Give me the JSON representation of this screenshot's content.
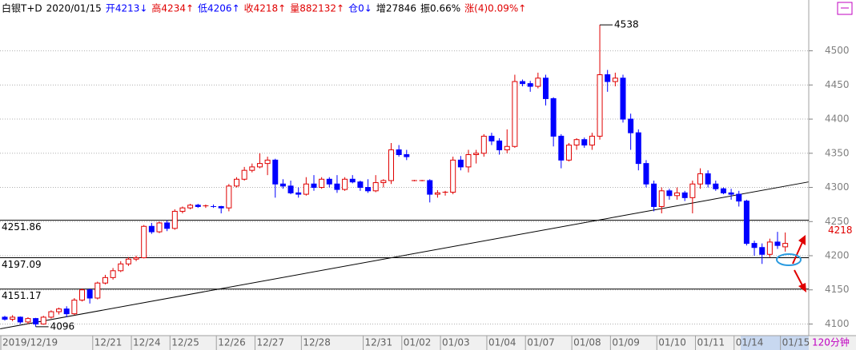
{
  "chart_data": {
    "type": "candlestick",
    "title_parts": [
      {
        "text": "白银T+D",
        "color": "#000000"
      },
      {
        "text": "2020/01/15",
        "color": "#000000"
      },
      {
        "text": "开4213↓",
        "color": "#0000ff"
      },
      {
        "text": "高4234↑",
        "color": "#e00000"
      },
      {
        "text": "低4206↑",
        "color": "#0000ff"
      },
      {
        "text": "收4218↑",
        "color": "#e00000"
      },
      {
        "text": "量882132↑",
        "color": "#e00000"
      },
      {
        "text": "仓0↓",
        "color": "#0000ff"
      },
      {
        "text": "增27846",
        "color": "#000000"
      },
      {
        "text": "振0.66%",
        "color": "#000000"
      },
      {
        "text": "涨(4)0.09%↑",
        "color": "#e00000"
      }
    ],
    "timeframe": "120分钟",
    "up_color": "#e00000",
    "down_color": "#0000ff",
    "ylim": [
      4083,
      4551
    ],
    "yticks": [
      4100,
      4150,
      4200,
      4250,
      4300,
      4350,
      4400,
      4450,
      4500
    ],
    "grid": true,
    "ref_lines": [
      4251.86,
      4197.09,
      4151.17
    ],
    "trend_line": {
      "from": [
        -0.6,
        4093
      ],
      "to": [
        104,
        4308
      ]
    },
    "high_label_index": 77,
    "low_label_index": 4,
    "categories": [
      "2019/12/19",
      null,
      null,
      null,
      null,
      null,
      null,
      null,
      null,
      null,
      null,
      null,
      "12/21",
      null,
      null,
      null,
      null,
      "12/24",
      null,
      null,
      null,
      null,
      "12/25",
      null,
      null,
      null,
      null,
      null,
      "12/26",
      null,
      null,
      null,
      null,
      "12/27",
      null,
      null,
      null,
      null,
      null,
      "12/28",
      null,
      null,
      null,
      null,
      null,
      null,
      null,
      "12/31",
      null,
      null,
      null,
      null,
      "01/02",
      null,
      null,
      null,
      null,
      "01/03",
      null,
      null,
      null,
      null,
      null,
      "01/04",
      null,
      null,
      null,
      null,
      "01/07",
      null,
      null,
      null,
      null,
      null,
      "01/08",
      null,
      null,
      null,
      null,
      "01/09",
      null,
      null,
      null,
      null,
      null,
      "01/10",
      null,
      null,
      null,
      null,
      "01/11",
      null,
      null,
      null,
      null,
      "01/14",
      null,
      null,
      null,
      null,
      null,
      "01/15"
    ],
    "candles": [
      [
        4110,
        4112,
        4105,
        4107
      ],
      [
        4107,
        4113,
        4104,
        4110
      ],
      [
        4110,
        4111,
        4100,
        4103
      ],
      [
        4103,
        4110,
        4100,
        4108
      ],
      [
        4108,
        4109,
        4096,
        4100
      ],
      [
        4100,
        4112,
        4099,
        4110
      ],
      [
        4110,
        4120,
        4108,
        4118
      ],
      [
        4118,
        4124,
        4114,
        4122
      ],
      [
        4122,
        4126,
        4110,
        4115
      ],
      [
        4115,
        4138,
        4113,
        4135
      ],
      [
        4135,
        4152,
        4133,
        4150
      ],
      [
        4150,
        4152,
        4130,
        4138
      ],
      [
        4138,
        4162,
        4136,
        4160
      ],
      [
        4160,
        4172,
        4158,
        4168
      ],
      [
        4168,
        4182,
        4165,
        4178
      ],
      [
        4178,
        4192,
        4176,
        4188
      ],
      [
        4188,
        4198,
        4185,
        4195
      ],
      [
        4195,
        4200,
        4192,
        4197
      ],
      [
        4197,
        4245,
        4196,
        4243
      ],
      [
        4243,
        4248,
        4232,
        4235
      ],
      [
        4235,
        4250,
        4233,
        4248
      ],
      [
        4248,
        4252,
        4236,
        4240
      ],
      [
        4240,
        4268,
        4238,
        4265
      ],
      [
        4265,
        4272,
        4262,
        4270
      ],
      [
        4270,
        4276,
        4268,
        4274
      ],
      [
        4274,
        4276,
        4270,
        4272
      ],
      [
        4272,
        4275,
        4270,
        4273
      ],
      [
        4273,
        4275,
        4270,
        4272
      ],
      [
        4272,
        4273,
        4262,
        4270
      ],
      [
        4270,
        4305,
        4265,
        4302
      ],
      [
        4302,
        4315,
        4300,
        4312
      ],
      [
        4312,
        4330,
        4310,
        4325
      ],
      [
        4325,
        4335,
        4322,
        4330
      ],
      [
        4330,
        4350,
        4328,
        4335
      ],
      [
        4335,
        4345,
        4318,
        4340
      ],
      [
        4340,
        4342,
        4285,
        4305
      ],
      [
        4305,
        4312,
        4298,
        4302
      ],
      [
        4302,
        4310,
        4290,
        4292
      ],
      [
        4292,
        4300,
        4285,
        4290
      ],
      [
        4290,
        4315,
        4288,
        4305
      ],
      [
        4305,
        4318,
        4295,
        4300
      ],
      [
        4300,
        4315,
        4298,
        4312
      ],
      [
        4312,
        4315,
        4300,
        4305
      ],
      [
        4305,
        4318,
        4292,
        4297
      ],
      [
        4297,
        4315,
        4295,
        4312
      ],
      [
        4312,
        4318,
        4306,
        4308
      ],
      [
        4308,
        4310,
        4295,
        4300
      ],
      [
        4300,
        4312,
        4292,
        4295
      ],
      [
        4295,
        4318,
        4293,
        4307
      ],
      [
        4307,
        4312,
        4300,
        4310
      ],
      [
        4310,
        4365,
        4305,
        4355
      ],
      [
        4355,
        4362,
        4345,
        4348
      ],
      [
        4348,
        4355,
        4340,
        4345
      ],
      [
        4310,
        4311,
        4309,
        4310
      ],
      [
        4310,
        4311,
        4309,
        4310
      ],
      [
        4310,
        4312,
        4278,
        4290
      ],
      [
        4290,
        4296,
        4285,
        4292
      ],
      [
        4292,
        4295,
        4288,
        4293
      ],
      [
        4293,
        4345,
        4290,
        4340
      ],
      [
        4340,
        4346,
        4325,
        4330
      ],
      [
        4330,
        4355,
        4322,
        4348
      ],
      [
        4348,
        4355,
        4335,
        4350
      ],
      [
        4350,
        4378,
        4345,
        4375
      ],
      [
        4375,
        4380,
        4362,
        4368
      ],
      [
        4368,
        4372,
        4348,
        4355
      ],
      [
        4355,
        4385,
        4350,
        4360
      ],
      [
        4360,
        4465,
        4358,
        4455
      ],
      [
        4455,
        4458,
        4448,
        4452
      ],
      [
        4452,
        4456,
        4440,
        4448
      ],
      [
        4448,
        4468,
        4445,
        4460
      ],
      [
        4460,
        4465,
        4420,
        4430
      ],
      [
        4430,
        4432,
        4360,
        4375
      ],
      [
        4375,
        4378,
        4328,
        4340
      ],
      [
        4340,
        4365,
        4338,
        4362
      ],
      [
        4362,
        4372,
        4355,
        4370
      ],
      [
        4370,
        4373,
        4358,
        4362
      ],
      [
        4362,
        4380,
        4355,
        4375
      ],
      [
        4375,
        4538,
        4370,
        4465
      ],
      [
        4465,
        4472,
        4440,
        4455
      ],
      [
        4455,
        4468,
        4448,
        4460
      ],
      [
        4460,
        4465,
        4395,
        4400
      ],
      [
        4400,
        4408,
        4355,
        4380
      ],
      [
        4380,
        4385,
        4325,
        4335
      ],
      [
        4335,
        4340,
        4300,
        4305
      ],
      [
        4305,
        4310,
        4265,
        4272
      ],
      [
        4272,
        4300,
        4262,
        4295
      ],
      [
        4295,
        4298,
        4282,
        4288
      ],
      [
        4288,
        4300,
        4282,
        4292
      ],
      [
        4292,
        4295,
        4280,
        4285
      ],
      [
        4285,
        4310,
        4262,
        4305
      ],
      [
        4305,
        4328,
        4298,
        4320
      ],
      [
        4320,
        4325,
        4300,
        4305
      ],
      [
        4305,
        4310,
        4295,
        4298
      ],
      [
        4298,
        4300,
        4290,
        4292
      ],
      [
        4292,
        4298,
        4282,
        4290
      ],
      [
        4290,
        4295,
        4272,
        4280
      ],
      [
        4280,
        4282,
        4215,
        4218
      ],
      [
        4218,
        4222,
        4200,
        4212
      ],
      [
        4212,
        4218,
        4188,
        4202
      ],
      [
        4202,
        4225,
        4198,
        4220
      ],
      [
        4220,
        4235,
        4210,
        4215
      ],
      [
        4213,
        4234,
        4206,
        4218
      ]
    ]
  }
}
